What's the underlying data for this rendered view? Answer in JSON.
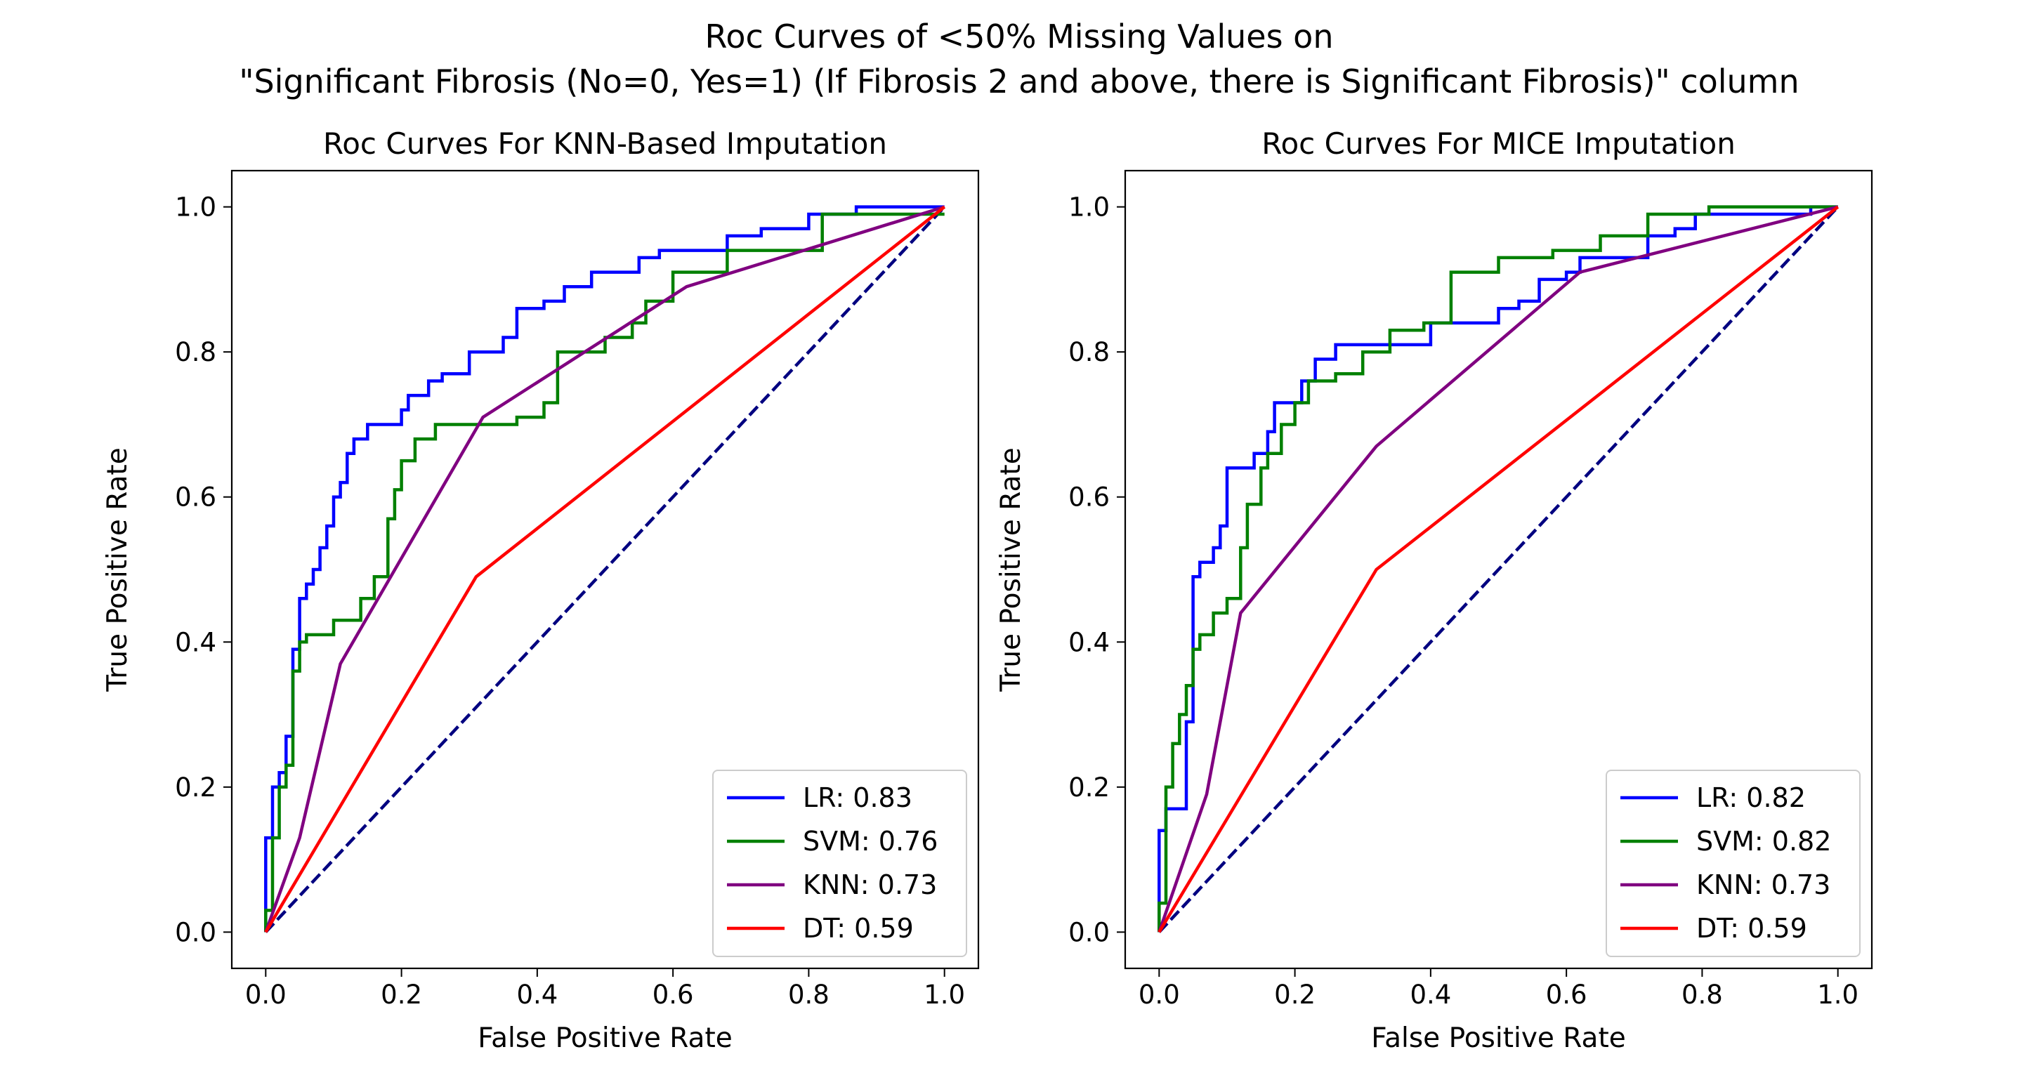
{
  "figure": {
    "title_line1": "Roc Curves of <50% Missing Values on",
    "title_line2": "\"Significant Fibrosis (No=0, Yes=1) (If Fibrosis 2 and above, there is Significant Fibrosis)\" column"
  },
  "colors": {
    "LR": "#0000ff",
    "SVM": "#008000",
    "KNN": "#800080",
    "DT": "#ff0000",
    "diagonal": "#000080"
  },
  "chart_data": [
    {
      "type": "line",
      "title": "Roc Curves For KNN-Based Imputation",
      "xlabel": "False Positive Rate",
      "ylabel": "True Positive Rate",
      "xlim": [
        -0.05,
        1.05
      ],
      "ylim": [
        -0.05,
        1.05
      ],
      "xticks": [
        "0.0",
        "0.2",
        "0.4",
        "0.6",
        "0.8",
        "1.0"
      ],
      "yticks": [
        "0.0",
        "0.2",
        "0.4",
        "0.6",
        "0.8",
        "1.0"
      ],
      "legend_position": "lower-right",
      "diagonal": {
        "x": [
          0,
          1
        ],
        "y": [
          0,
          1
        ],
        "style": "dashed"
      },
      "series": [
        {
          "name": "LR: 0.83",
          "color": "#0000ff",
          "x": [
            0,
            0,
            0.01,
            0.01,
            0.02,
            0.02,
            0.03,
            0.03,
            0.04,
            0.04,
            0.05,
            0.05,
            0.06,
            0.06,
            0.07,
            0.07,
            0.08,
            0.08,
            0.09,
            0.09,
            0.1,
            0.1,
            0.11,
            0.11,
            0.12,
            0.12,
            0.13,
            0.13,
            0.15,
            0.15,
            0.16,
            0.16,
            0.2,
            0.2,
            0.21,
            0.21,
            0.24,
            0.24,
            0.26,
            0.26,
            0.3,
            0.3,
            0.35,
            0.35,
            0.37,
            0.37,
            0.41,
            0.41,
            0.44,
            0.44,
            0.48,
            0.48,
            0.55,
            0.55,
            0.58,
            0.58,
            0.68,
            0.68,
            0.73,
            0.73,
            0.8,
            0.8,
            0.87,
            0.87,
            1
          ],
          "y": [
            0,
            0.13,
            0.13,
            0.2,
            0.2,
            0.22,
            0.22,
            0.27,
            0.27,
            0.39,
            0.39,
            0.46,
            0.46,
            0.48,
            0.48,
            0.5,
            0.5,
            0.53,
            0.53,
            0.56,
            0.56,
            0.6,
            0.6,
            0.62,
            0.62,
            0.66,
            0.66,
            0.68,
            0.68,
            0.7,
            0.7,
            0.7,
            0.7,
            0.72,
            0.72,
            0.74,
            0.74,
            0.76,
            0.76,
            0.77,
            0.77,
            0.8,
            0.8,
            0.82,
            0.82,
            0.86,
            0.86,
            0.87,
            0.87,
            0.89,
            0.89,
            0.91,
            0.91,
            0.93,
            0.93,
            0.94,
            0.94,
            0.96,
            0.96,
            0.97,
            0.97,
            0.99,
            0.99,
            1,
            1
          ]
        },
        {
          "name": "SVM: 0.76",
          "color": "#008000",
          "x": [
            0,
            0,
            0.01,
            0.01,
            0.02,
            0.02,
            0.03,
            0.03,
            0.04,
            0.04,
            0.05,
            0.05,
            0.06,
            0.06,
            0.1,
            0.1,
            0.14,
            0.14,
            0.16,
            0.16,
            0.18,
            0.18,
            0.19,
            0.19,
            0.2,
            0.2,
            0.22,
            0.22,
            0.25,
            0.25,
            0.3,
            0.3,
            0.37,
            0.37,
            0.41,
            0.41,
            0.43,
            0.43,
            0.5,
            0.5,
            0.54,
            0.54,
            0.56,
            0.56,
            0.6,
            0.6,
            0.68,
            0.68,
            0.82,
            0.82,
            1
          ],
          "y": [
            0,
            0.03,
            0.03,
            0.13,
            0.13,
            0.2,
            0.2,
            0.23,
            0.23,
            0.36,
            0.36,
            0.4,
            0.4,
            0.41,
            0.41,
            0.43,
            0.43,
            0.46,
            0.46,
            0.49,
            0.49,
            0.57,
            0.57,
            0.61,
            0.61,
            0.65,
            0.65,
            0.68,
            0.68,
            0.7,
            0.7,
            0.7,
            0.7,
            0.71,
            0.71,
            0.73,
            0.73,
            0.8,
            0.8,
            0.82,
            0.82,
            0.84,
            0.84,
            0.87,
            0.87,
            0.91,
            0.91,
            0.94,
            0.94,
            0.99,
            0.99
          ]
        },
        {
          "name": "KNN: 0.73",
          "color": "#800080",
          "x": [
            0,
            0.05,
            0.11,
            0.32,
            0.62,
            1
          ],
          "y": [
            0,
            0.13,
            0.37,
            0.71,
            0.89,
            1
          ]
        },
        {
          "name": "DT: 0.59",
          "color": "#ff0000",
          "x": [
            0,
            0.31,
            1
          ],
          "y": [
            0,
            0.49,
            1
          ]
        }
      ]
    },
    {
      "type": "line",
      "title": "Roc Curves For MICE Imputation",
      "xlabel": "False Positive Rate",
      "ylabel": "True Positive Rate",
      "xlim": [
        -0.05,
        1.05
      ],
      "ylim": [
        -0.05,
        1.05
      ],
      "xticks": [
        "0.0",
        "0.2",
        "0.4",
        "0.6",
        "0.8",
        "1.0"
      ],
      "yticks": [
        "0.0",
        "0.2",
        "0.4",
        "0.6",
        "0.8",
        "1.0"
      ],
      "legend_position": "lower-right",
      "diagonal": {
        "x": [
          0,
          1
        ],
        "y": [
          0,
          1
        ],
        "style": "dashed"
      },
      "series": [
        {
          "name": "LR: 0.82",
          "color": "#0000ff",
          "x": [
            0,
            0,
            0.01,
            0.01,
            0.04,
            0.04,
            0.05,
            0.05,
            0.06,
            0.06,
            0.08,
            0.08,
            0.09,
            0.09,
            0.1,
            0.1,
            0.1,
            0.1,
            0.14,
            0.14,
            0.16,
            0.16,
            0.17,
            0.17,
            0.21,
            0.21,
            0.23,
            0.23,
            0.26,
            0.26,
            0.3,
            0.3,
            0.4,
            0.4,
            0.43,
            0.43,
            0.5,
            0.5,
            0.53,
            0.53,
            0.56,
            0.56,
            0.6,
            0.6,
            0.62,
            0.62,
            0.72,
            0.72,
            0.76,
            0.76,
            0.79,
            0.79,
            0.96,
            0.96,
            1
          ],
          "y": [
            0,
            0.14,
            0.14,
            0.17,
            0.17,
            0.29,
            0.29,
            0.49,
            0.49,
            0.51,
            0.51,
            0.53,
            0.53,
            0.56,
            0.56,
            0.59,
            0.59,
            0.64,
            0.64,
            0.66,
            0.66,
            0.69,
            0.69,
            0.73,
            0.73,
            0.76,
            0.76,
            0.79,
            0.79,
            0.81,
            0.81,
            0.81,
            0.81,
            0.84,
            0.84,
            0.84,
            0.84,
            0.86,
            0.86,
            0.87,
            0.87,
            0.9,
            0.9,
            0.91,
            0.91,
            0.93,
            0.93,
            0.96,
            0.96,
            0.97,
            0.97,
            0.99,
            0.99,
            1,
            1
          ]
        },
        {
          "name": "SVM: 0.82",
          "color": "#008000",
          "x": [
            0,
            0,
            0.01,
            0.01,
            0.02,
            0.02,
            0.03,
            0.03,
            0.04,
            0.04,
            0.05,
            0.05,
            0.06,
            0.06,
            0.08,
            0.08,
            0.1,
            0.1,
            0.12,
            0.12,
            0.13,
            0.13,
            0.15,
            0.15,
            0.16,
            0.16,
            0.18,
            0.18,
            0.2,
            0.2,
            0.22,
            0.22,
            0.26,
            0.26,
            0.3,
            0.3,
            0.34,
            0.34,
            0.39,
            0.39,
            0.43,
            0.43,
            0.5,
            0.5,
            0.58,
            0.58,
            0.65,
            0.65,
            0.72,
            0.72,
            0.81,
            0.81,
            1
          ],
          "y": [
            0,
            0.04,
            0.04,
            0.2,
            0.2,
            0.26,
            0.26,
            0.3,
            0.3,
            0.34,
            0.34,
            0.39,
            0.39,
            0.41,
            0.41,
            0.44,
            0.44,
            0.46,
            0.46,
            0.53,
            0.53,
            0.59,
            0.59,
            0.64,
            0.64,
            0.66,
            0.66,
            0.7,
            0.7,
            0.73,
            0.73,
            0.76,
            0.76,
            0.77,
            0.77,
            0.8,
            0.8,
            0.83,
            0.83,
            0.84,
            0.84,
            0.91,
            0.91,
            0.93,
            0.93,
            0.94,
            0.94,
            0.96,
            0.96,
            0.99,
            0.99,
            1,
            1
          ]
        },
        {
          "name": "KNN: 0.73",
          "color": "#800080",
          "x": [
            0,
            0.07,
            0.12,
            0.32,
            0.62,
            1
          ],
          "y": [
            0,
            0.19,
            0.44,
            0.67,
            0.91,
            1
          ]
        },
        {
          "name": "DT: 0.59",
          "color": "#ff0000",
          "x": [
            0,
            0.32,
            1
          ],
          "y": [
            0,
            0.5,
            1
          ]
        }
      ]
    }
  ]
}
